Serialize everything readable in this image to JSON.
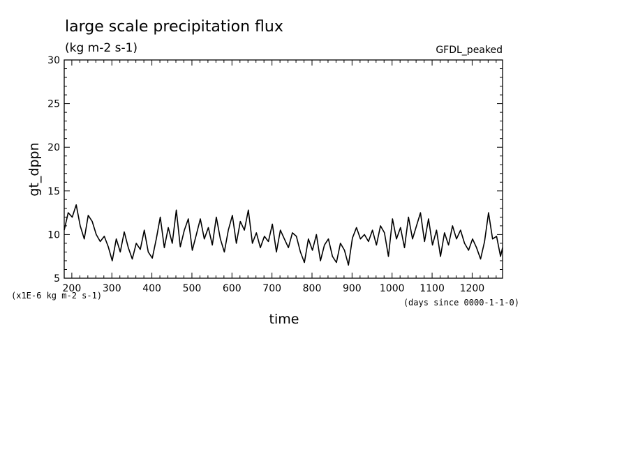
{
  "chart_data": {
    "type": "line",
    "title": "large scale precipitation flux",
    "subtitle": "(kg m-2 s-1)",
    "model_label": "GFDL_peaked",
    "xlabel": "time",
    "x_units": "(days since 0000-1-1-0)",
    "ylabel": "gt_dppn",
    "y_scale_note": "(x1E-6 kg m-2 s-1)",
    "xlim": [
      181,
      1276
    ],
    "ylim": [
      5,
      30
    ],
    "x_ticks": [
      200,
      300,
      400,
      500,
      600,
      700,
      800,
      900,
      1000,
      1100,
      1200
    ],
    "y_ticks": [
      5,
      10,
      15,
      20,
      25,
      30
    ],
    "grid": false,
    "series": [
      {
        "color": "#000000",
        "x": [
          181,
          191,
          201,
          211,
          221,
          231,
          241,
          251,
          261,
          271,
          281,
          291,
          301,
          311,
          321,
          331,
          341,
          351,
          361,
          371,
          381,
          391,
          401,
          411,
          421,
          431,
          441,
          451,
          461,
          471,
          481,
          491,
          501,
          511,
          521,
          531,
          541,
          551,
          561,
          571,
          581,
          591,
          601,
          611,
          621,
          631,
          641,
          651,
          661,
          671,
          681,
          691,
          701,
          711,
          721,
          731,
          741,
          751,
          761,
          771,
          781,
          791,
          801,
          811,
          821,
          831,
          841,
          851,
          861,
          871,
          881,
          891,
          901,
          911,
          921,
          931,
          941,
          951,
          961,
          971,
          981,
          991,
          1001,
          1011,
          1021,
          1031,
          1041,
          1051,
          1061,
          1071,
          1081,
          1091,
          1101,
          1111,
          1121,
          1131,
          1141,
          1151,
          1161,
          1171,
          1181,
          1191,
          1201,
          1211,
          1221,
          1231,
          1241,
          1251,
          1261,
          1271,
          1276
        ],
        "values": [
          10.5,
          12.5,
          12.0,
          13.4,
          11.0,
          9.5,
          12.2,
          11.5,
          10.0,
          9.2,
          9.8,
          8.6,
          7.0,
          9.5,
          8.0,
          10.3,
          8.5,
          7.2,
          9.0,
          8.3,
          10.5,
          8.0,
          7.3,
          9.5,
          12.0,
          8.5,
          10.8,
          9.0,
          12.8,
          8.6,
          10.5,
          11.8,
          8.2,
          10.0,
          11.8,
          9.5,
          10.8,
          8.8,
          12.0,
          9.5,
          8.0,
          10.5,
          12.2,
          9.0,
          11.5,
          10.5,
          12.8,
          9.0,
          10.2,
          8.5,
          9.8,
          9.2,
          11.2,
          8.0,
          10.5,
          9.5,
          8.5,
          10.2,
          9.8,
          8.0,
          6.8,
          9.5,
          8.2,
          10.0,
          7.0,
          8.8,
          9.5,
          7.5,
          6.8,
          9.0,
          8.2,
          6.5,
          9.6,
          10.8,
          9.5,
          10.0,
          9.2,
          10.5,
          8.8,
          11.0,
          10.2,
          7.5,
          11.8,
          9.5,
          10.8,
          8.5,
          12.0,
          9.5,
          11.0,
          12.5,
          9.2,
          11.8,
          8.8,
          10.5,
          7.5,
          10.2,
          8.8,
          11.0,
          9.5,
          10.5,
          9.0,
          8.2,
          9.5,
          8.5,
          7.2,
          9.2,
          12.5,
          9.5,
          9.8,
          7.5,
          8.5
        ]
      }
    ]
  }
}
